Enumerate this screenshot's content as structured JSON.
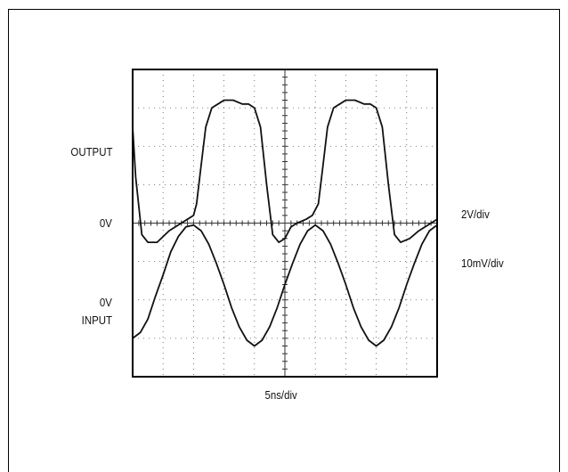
{
  "labels": {
    "output": "OUTPUT",
    "zero_output": "0V",
    "zero_input": "0V",
    "input": "INPUT",
    "ch1_scale": "2V/div",
    "ch2_scale": "10mV/div",
    "time_scale": "5ns/div"
  },
  "chart_data": {
    "type": "line",
    "title": "",
    "xlabel": "5ns/div",
    "ylabel": "",
    "grid": true,
    "grid_divisions": {
      "x": 10,
      "y": 8
    },
    "xlim": [
      0,
      10
    ],
    "ylim": [
      -4,
      4
    ],
    "colors": {
      "trace": "#111111",
      "grid": "#555555",
      "border": "#000000"
    },
    "series": [
      {
        "name": "OUTPUT",
        "scale": "2V/div",
        "x": [
          0.0,
          0.1,
          0.3,
          0.5,
          0.8,
          1.2,
          1.6,
          1.8,
          2.0,
          2.1,
          2.25,
          2.4,
          2.6,
          2.8,
          3.0,
          3.3,
          3.6,
          3.8,
          4.0,
          4.2,
          4.4,
          4.6,
          4.8,
          5.0,
          5.2,
          5.4,
          5.7,
          5.9,
          6.1,
          6.25,
          6.4,
          6.6,
          6.8,
          7.0,
          7.3,
          7.6,
          7.8,
          8.0,
          8.2,
          8.4,
          8.6,
          8.8,
          9.1,
          9.4,
          9.7,
          10.0
        ],
        "y": [
          2.5,
          1.2,
          -0.3,
          -0.5,
          -0.5,
          -0.2,
          0.0,
          0.1,
          0.2,
          0.5,
          1.5,
          2.5,
          3.0,
          3.1,
          3.2,
          3.2,
          3.1,
          3.1,
          3.0,
          2.5,
          1.0,
          -0.3,
          -0.5,
          -0.4,
          -0.1,
          0.0,
          0.1,
          0.2,
          0.5,
          1.5,
          2.5,
          3.0,
          3.1,
          3.2,
          3.2,
          3.1,
          3.1,
          3.0,
          2.5,
          1.0,
          -0.3,
          -0.5,
          -0.4,
          -0.2,
          -0.05,
          0.1
        ]
      },
      {
        "name": "INPUT",
        "scale": "10mV/div",
        "x": [
          0.0,
          0.25,
          0.5,
          0.75,
          1.0,
          1.25,
          1.5,
          1.75,
          2.0,
          2.25,
          2.5,
          2.75,
          3.0,
          3.25,
          3.5,
          3.75,
          4.0,
          4.25,
          4.5,
          4.75,
          5.0,
          5.25,
          5.5,
          5.75,
          6.0,
          6.25,
          6.5,
          6.75,
          7.0,
          7.25,
          7.5,
          7.75,
          8.0,
          8.25,
          8.5,
          8.75,
          9.0,
          9.25,
          9.5,
          9.75,
          10.0
        ],
        "y": [
          -3.0,
          -2.85,
          -2.5,
          -1.9,
          -1.35,
          -0.75,
          -0.35,
          -0.1,
          -0.05,
          -0.2,
          -0.55,
          -1.05,
          -1.6,
          -2.2,
          -2.7,
          -3.05,
          -3.2,
          -3.05,
          -2.7,
          -2.2,
          -1.6,
          -1.05,
          -0.55,
          -0.2,
          -0.05,
          -0.2,
          -0.55,
          -1.05,
          -1.6,
          -2.2,
          -2.7,
          -3.05,
          -3.2,
          -3.05,
          -2.7,
          -2.2,
          -1.6,
          -1.05,
          -0.55,
          -0.2,
          -0.05
        ]
      }
    ]
  }
}
